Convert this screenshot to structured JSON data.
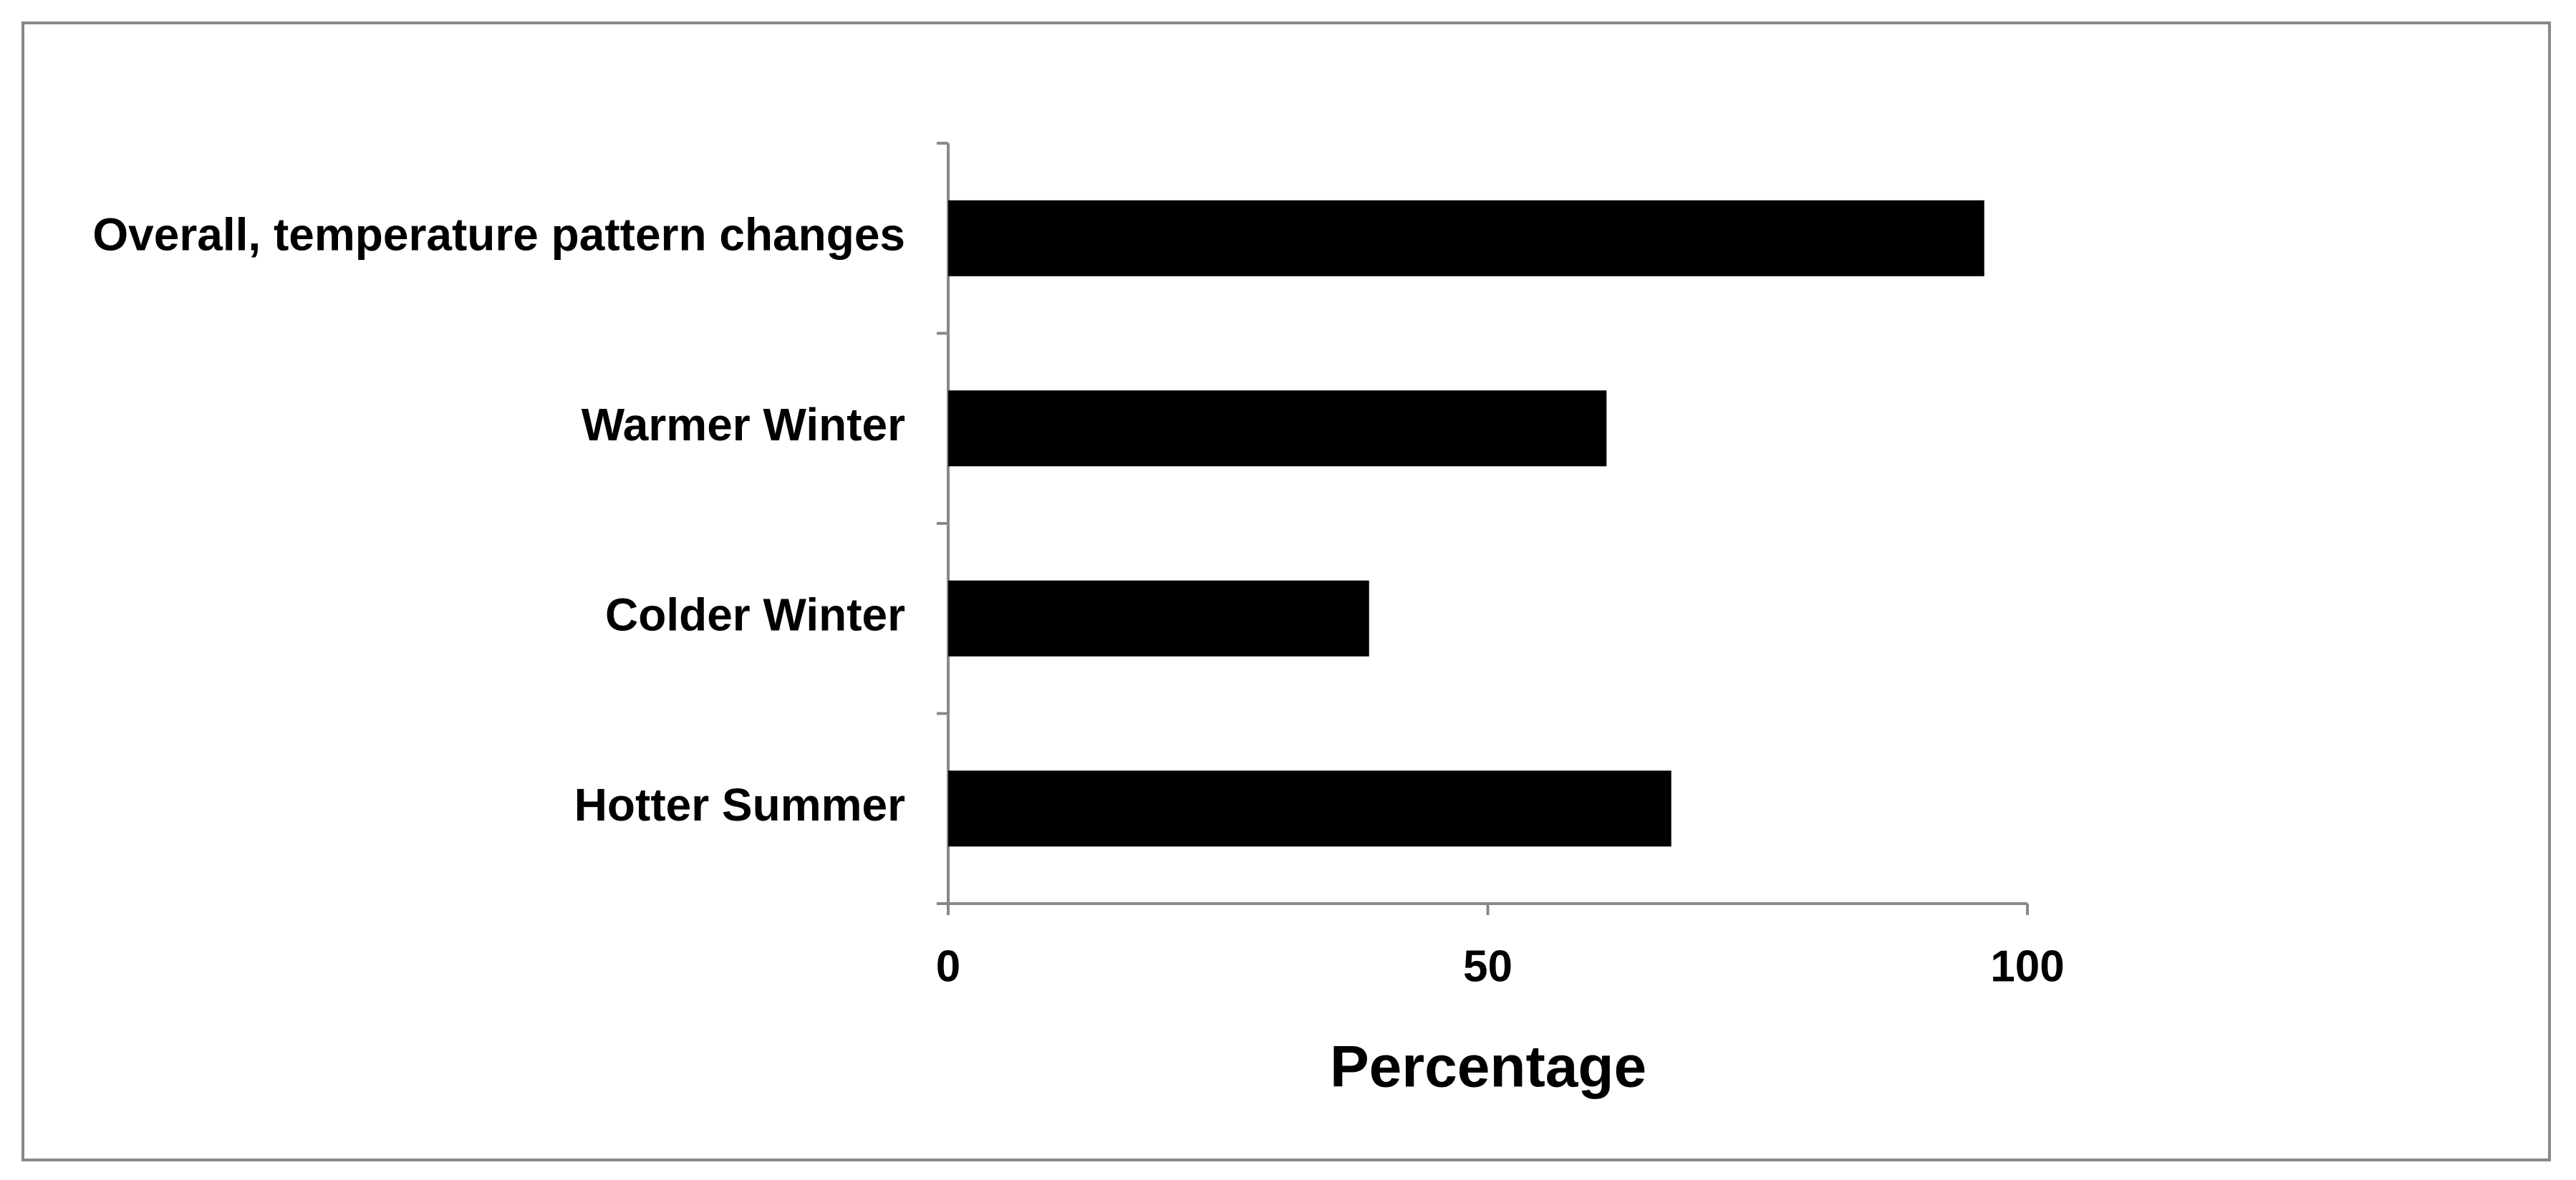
{
  "chart_data": {
    "type": "hbar",
    "x_label": "Percentage",
    "categories": [
      "Overall, temperature pattern changes",
      "Warmer Winter",
      "Colder Winter",
      "Hotter Summer"
    ],
    "values": [
      96,
      61,
      39,
      67
    ],
    "color": "#000000",
    "xlim": [
      0,
      100
    ],
    "xticks": [
      0,
      50,
      100
    ],
    "grid": false
  }
}
